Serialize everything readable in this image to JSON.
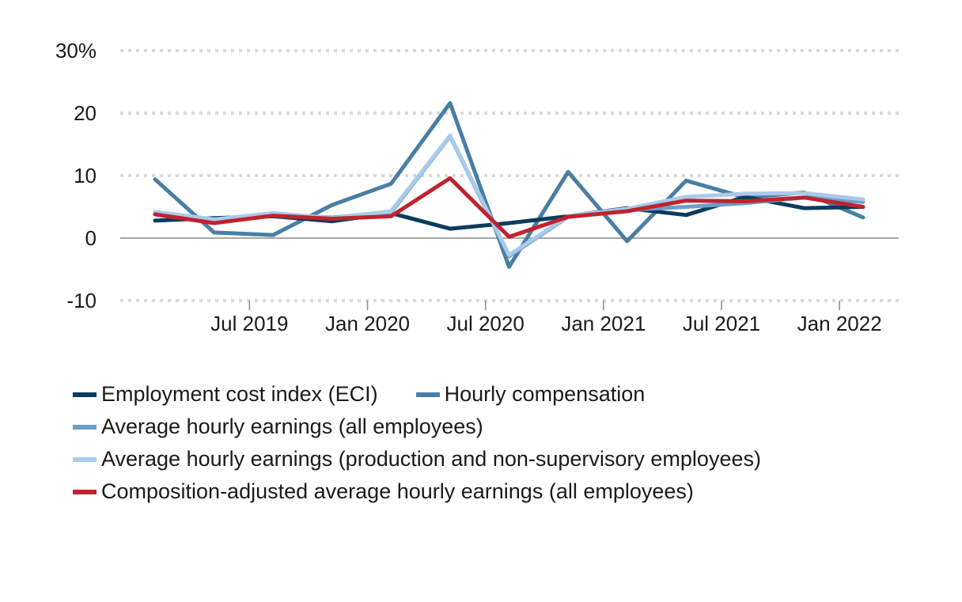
{
  "chart_data": {
    "type": "line",
    "title": "",
    "xlabel": "",
    "ylabel": "",
    "ylim": [
      -10,
      30
    ],
    "yticks": [
      {
        "value": 30,
        "label": "30%"
      },
      {
        "value": 20,
        "label": "20"
      },
      {
        "value": 10,
        "label": "10"
      },
      {
        "value": 0,
        "label": "0"
      },
      {
        "value": -10,
        "label": "-10"
      }
    ],
    "xticks": [
      "Jul 2019",
      "Jan 2020",
      "Jul 2020",
      "Jan 2021",
      "Jul 2021",
      "Jan 2022"
    ],
    "x": [
      "2019-Q1",
      "2019-Q2",
      "2019-Q3",
      "2019-Q4",
      "2020-Q1",
      "2020-Q2",
      "2020-Q3",
      "2020-Q4",
      "2021-Q1",
      "2021-Q2",
      "2021-Q3",
      "2021-Q4",
      "2022-Q1"
    ],
    "grid": true,
    "legend_position": "bottom",
    "series": [
      {
        "name": "Employment cost index (ECI)",
        "color": "#0b3c5d",
        "values": [
          2.8,
          3.2,
          3.5,
          2.7,
          4.0,
          1.5,
          2.4,
          3.5,
          4.8,
          3.7,
          6.6,
          4.8,
          5.0
        ]
      },
      {
        "name": "Hourly compensation",
        "color": "#4a7ea3",
        "values": [
          9.4,
          0.9,
          0.5,
          5.3,
          8.7,
          21.6,
          -4.6,
          10.6,
          -0.5,
          9.2,
          6.5,
          7.3,
          3.3
        ]
      },
      {
        "name": "Average hourly earnings (all employees)",
        "color": "#6e9ec5",
        "values": [
          3.9,
          2.9,
          3.7,
          3.3,
          4.1,
          16.3,
          -2.9,
          3.4,
          4.5,
          5.0,
          5.6,
          6.5,
          5.8
        ]
      },
      {
        "name": "Average hourly earnings (production and non-supervisory employees)",
        "color": "#a9cbea",
        "values": [
          4.2,
          3.0,
          4.0,
          3.2,
          4.3,
          16.4,
          -2.7,
          3.5,
          4.7,
          6.6,
          7.1,
          7.2,
          6.2
        ]
      },
      {
        "name": "Composition-adjusted average hourly earnings (all employees)",
        "color": "#c0222f",
        "values": [
          3.8,
          2.4,
          3.6,
          3.1,
          3.5,
          9.6,
          0.2,
          3.4,
          4.3,
          6.0,
          5.9,
          6.5,
          5.0
        ]
      }
    ]
  }
}
